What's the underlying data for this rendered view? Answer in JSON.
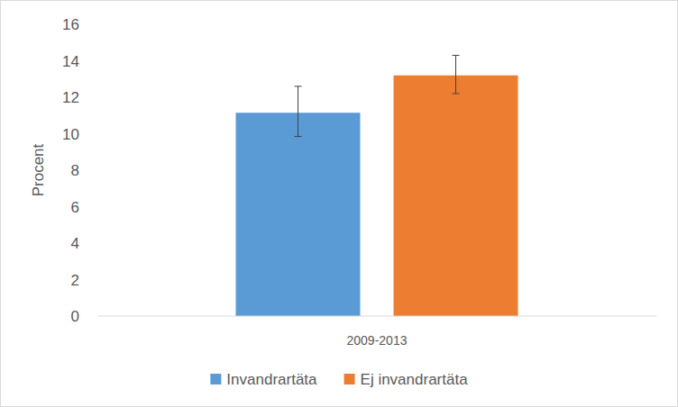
{
  "chart_data": {
    "type": "bar",
    "categories": [
      "2009-2013"
    ],
    "series": [
      {
        "name": "Invandrartäta",
        "color": "#5b9bd5",
        "values": [
          11.15
        ],
        "error_minus": [
          1.3
        ],
        "error_plus": [
          1.45
        ]
      },
      {
        "name": "Ej invandrartäta",
        "color": "#ed7d31",
        "values": [
          13.2
        ],
        "error_minus": [
          1.0
        ],
        "error_plus": [
          1.1
        ]
      }
    ],
    "y_label": "Procent",
    "ylim": [
      0,
      16
    ],
    "yticks": [
      0,
      2,
      4,
      6,
      8,
      10,
      12,
      14,
      16
    ],
    "grid": false,
    "legend": "bottom"
  }
}
